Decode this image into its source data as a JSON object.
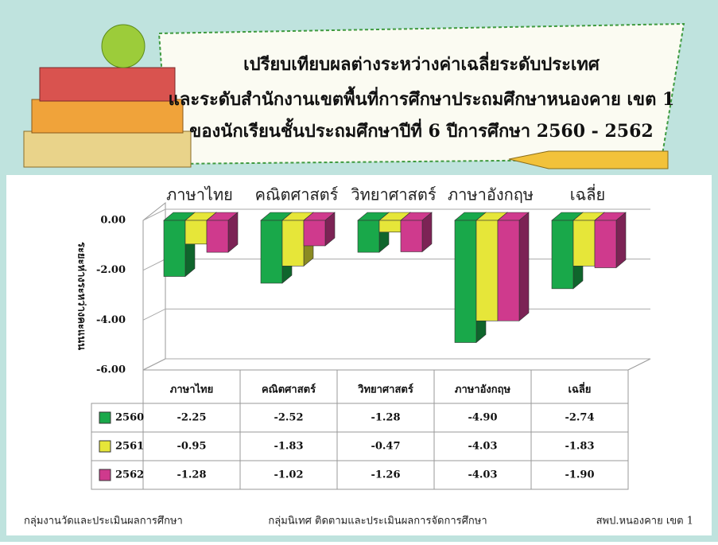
{
  "chart_data": {
    "type": "bar3d",
    "title": [
      "เปรียบเทียบผลต่างระหว่างค่าเฉลี่ยระดับประเทศ",
      "และระดับสำนักงานเขตพื้นที่การศึกษาประถมศึกษาหนองคาย เขต 1",
      "ของนักเรียนชั้นประถมศึกษาปีที่ 6  ปีการศึกษา 2560 - 2562"
    ],
    "y_label": "ระยะห่างระหว่างคะแนน",
    "categories": [
      "ภาษาไทย",
      "คณิตศาสตร์",
      "วิทยาศาสตร์",
      "ภาษาอังกฤษ",
      "เฉลี่ย"
    ],
    "series": [
      {
        "name": "2560",
        "color": "#19a84a",
        "values": [
          -2.25,
          -2.52,
          -1.28,
          -4.9,
          -2.74
        ],
        "value_labels": [
          "-2.25",
          "-2.52",
          "-1.28",
          "-4.90",
          "-2.74"
        ]
      },
      {
        "name": "2561",
        "color": "#e6e639",
        "values": [
          -0.95,
          -1.83,
          -0.47,
          -4.03,
          -1.83
        ],
        "value_labels": [
          "-0.95",
          "-1.83",
          "-0.47",
          "-4.03",
          "-1.83"
        ]
      },
      {
        "name": "2562",
        "color": "#cf3a8d",
        "values": [
          -1.28,
          -1.02,
          -1.26,
          -4.03,
          -1.9
        ],
        "value_labels": [
          "-1.28",
          "-1.02",
          "-1.26",
          "-4.03",
          "-1.90"
        ]
      }
    ],
    "ylim": [
      -6,
      0
    ],
    "yticks": [
      {
        "value": 0,
        "label": "0.00"
      },
      {
        "value": -2,
        "label": "-2.00"
      },
      {
        "value": -4,
        "label": "-4.00"
      },
      {
        "value": -6,
        "label": "-6.00"
      }
    ],
    "grid": true,
    "footer": [
      "กลุ่มงานวัดและประเมินผลการศึกษา",
      "กลุ่มนิเทศ ติดตามและประเมินผลการจัดการศึกษา",
      "สพป.หนองคาย เขต 1"
    ]
  }
}
